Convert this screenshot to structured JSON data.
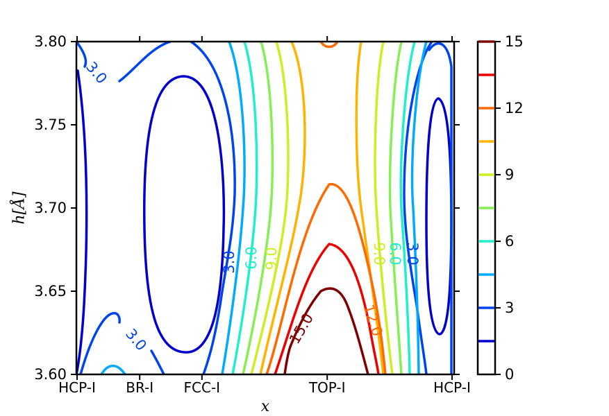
{
  "chart_data": {
    "type": "contour",
    "title": "",
    "xlabel": "x",
    "ylabel": "h[Å]",
    "x_categories": [
      "HCP-I",
      "BR-I",
      "FCC-I",
      "TOP-I",
      "HCP-I"
    ],
    "x_category_positions": [
      0.0,
      0.167,
      0.333,
      0.667,
      1.0
    ],
    "ylim": [
      3.6,
      3.8
    ],
    "yticks": [
      "3.60",
      "3.65",
      "3.70",
      "3.75",
      "3.80"
    ],
    "ytick_values": [
      3.6,
      3.65,
      3.7,
      3.75,
      3.8
    ],
    "contour_levels": [
      1.5,
      3.0,
      4.5,
      6.0,
      7.5,
      9.0,
      10.5,
      12.0,
      13.5,
      15.0
    ],
    "contour_labels": [
      "3.0",
      "3.0",
      "3.0",
      "6.0",
      "9.0",
      "15.0",
      "12.0",
      "9.0",
      "6.0",
      "3.0"
    ],
    "colorbar": {
      "range": [
        0,
        15
      ],
      "ticks": [
        "0",
        "3",
        "6",
        "9",
        "12",
        "15"
      ],
      "tick_values": [
        0,
        3,
        6,
        9,
        12,
        15
      ]
    },
    "colors": {
      "1.5": "#0000cc",
      "3.0": "#0044ee",
      "4.5": "#00aaff",
      "6.0": "#22eecc",
      "7.5": "#88ee55",
      "9.0": "#ccee22",
      "10.5": "#ffb300",
      "12.0": "#ff6a00",
      "13.5": "#ee0000",
      "15.0": "#800000"
    }
  }
}
